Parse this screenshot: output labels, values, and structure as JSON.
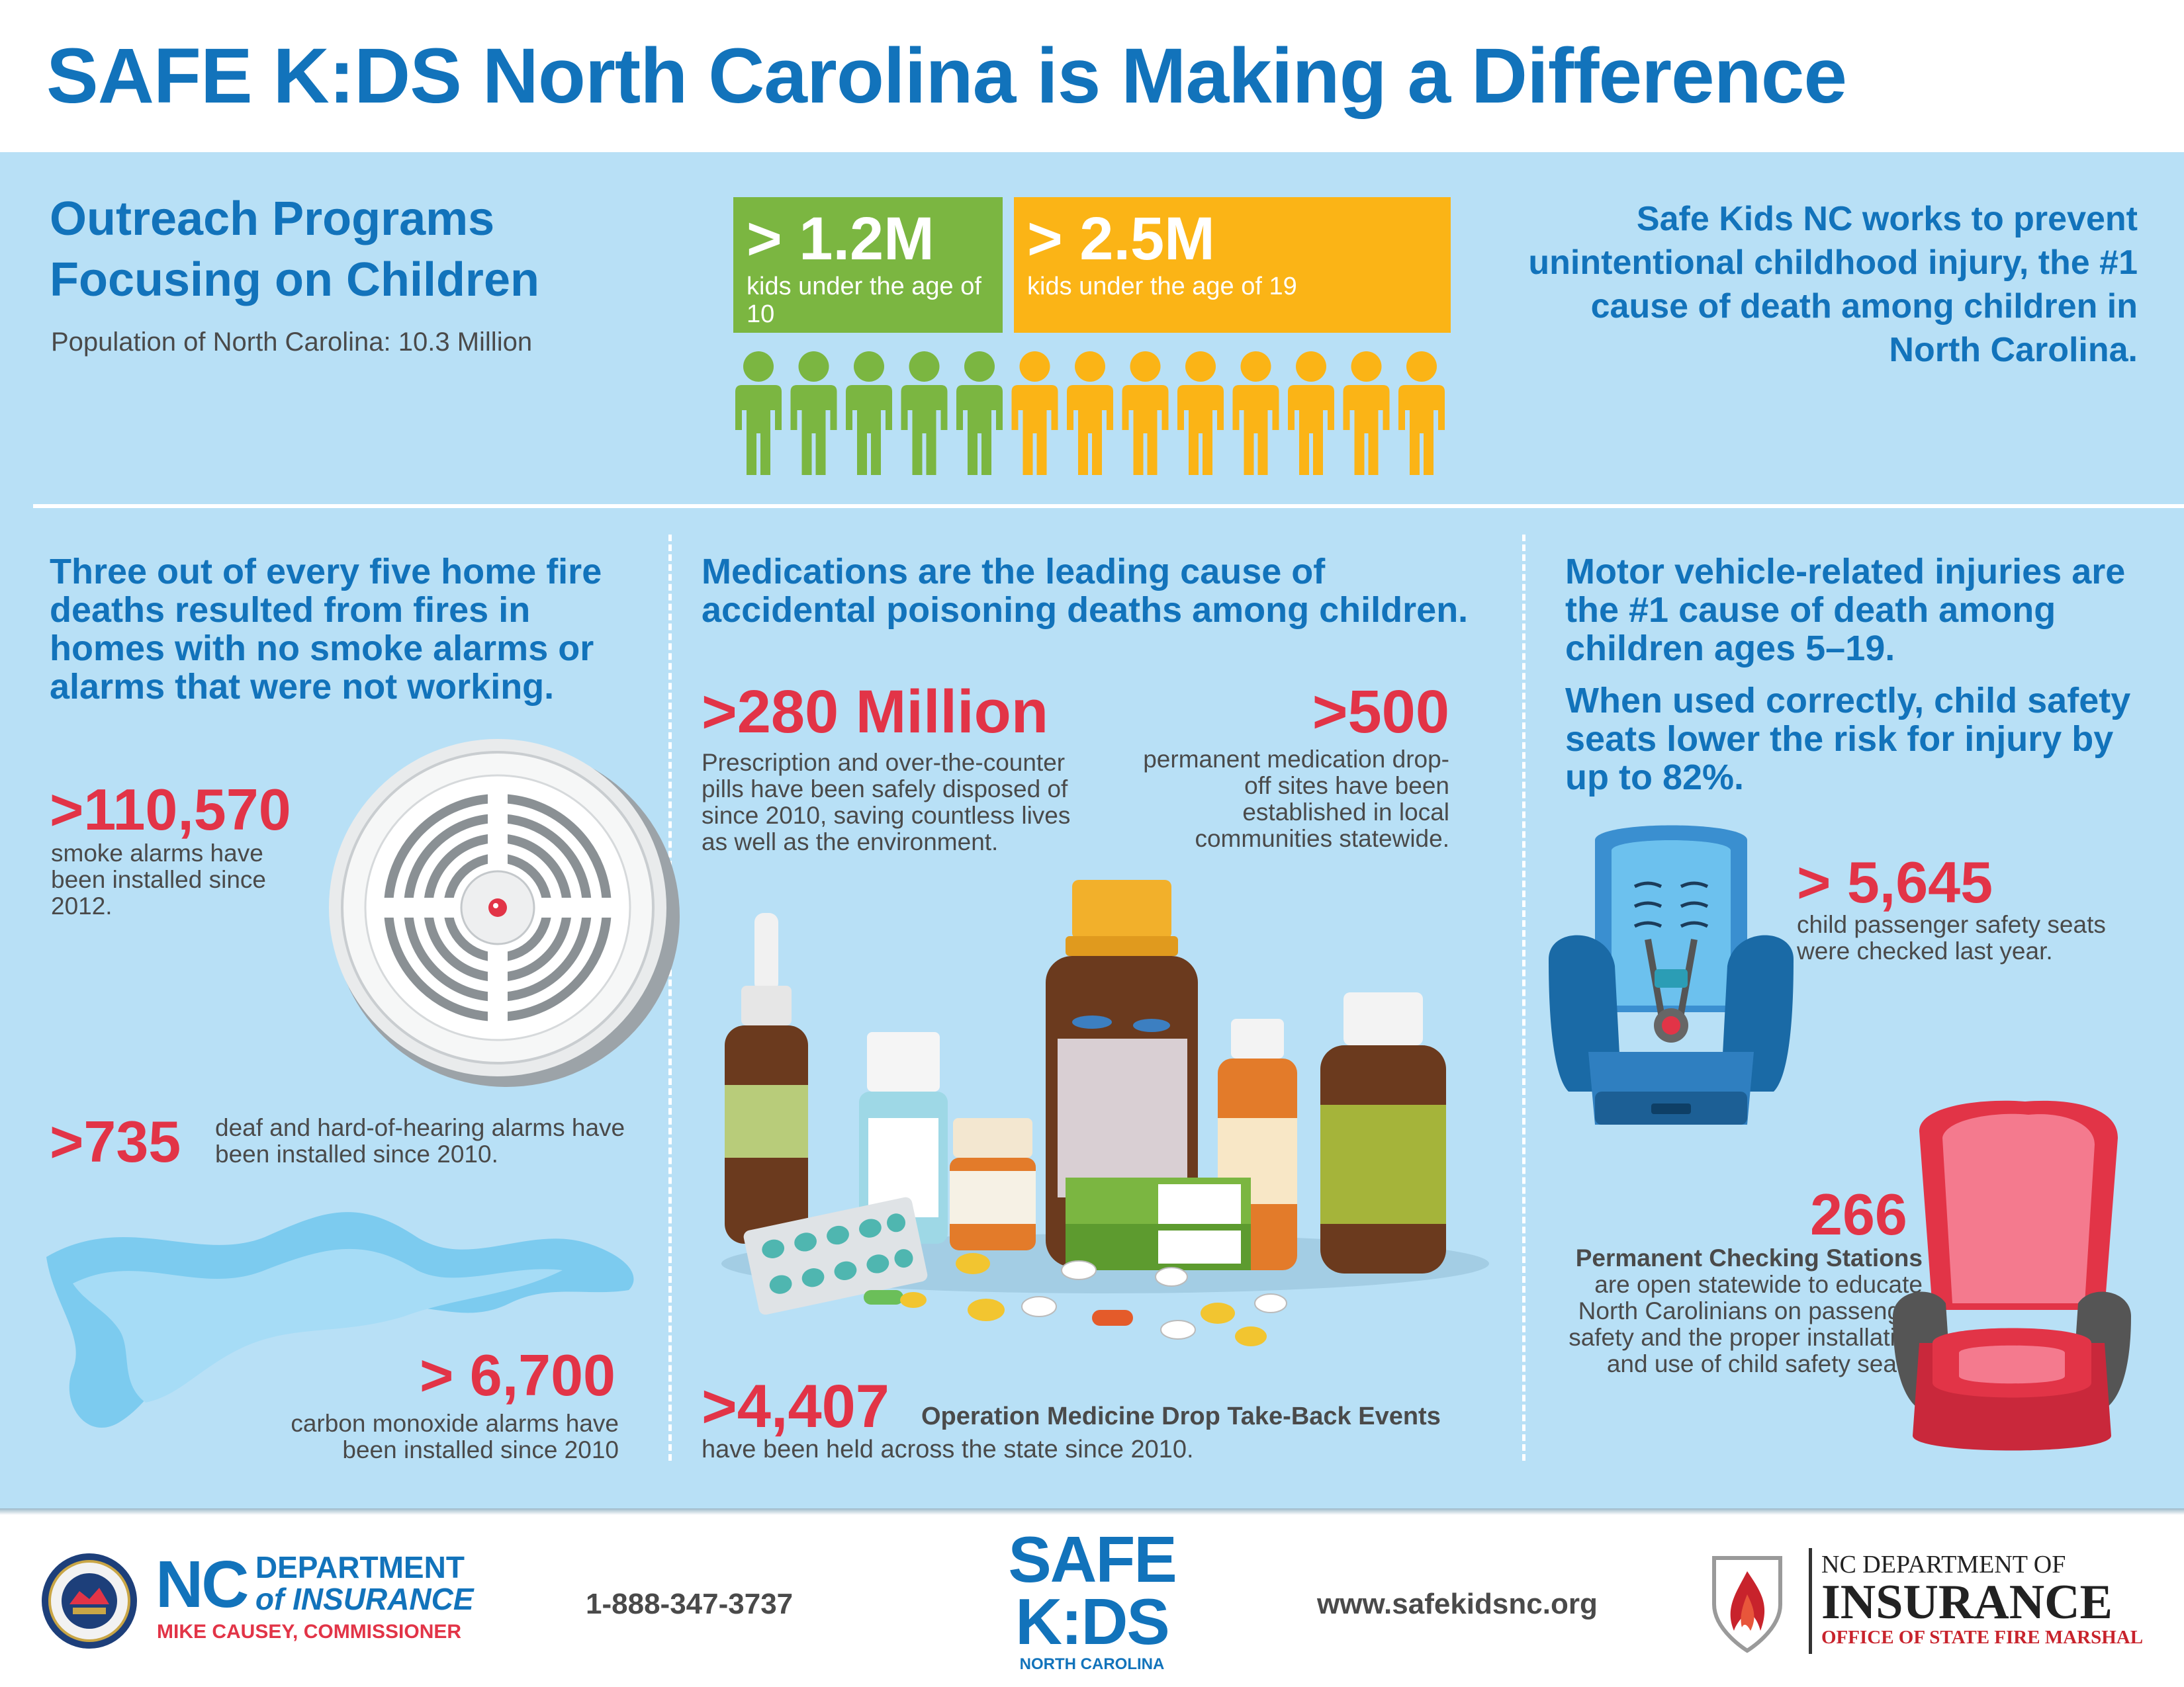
{
  "title": "SAFE K:DS North Carolina is Making a Difference",
  "outreach": {
    "title": "Outreach Programs Focusing on Children",
    "population": "Population of North Carolina: 10.3 Million",
    "stat_under_10": {
      "value": "> 1.2M",
      "label": "kids under the age of 10",
      "color": "#7bb641",
      "people_count": 5
    },
    "stat_under_19": {
      "value": "> 2.5M",
      "label": "kids under the age of 19",
      "color": "#fbb416",
      "people_count": 8
    },
    "mission": "Safe Kids NC works to prevent unintentional childhood injury, the #1 cause of death among children in North Carolina."
  },
  "fire": {
    "title": "Three out of every five home fire deaths resulted from fires in homes with no smoke alarms or alarms that were not working.",
    "smoke_alarms": {
      "value": ">110,570",
      "text": "smoke alarms have been installed since 2012."
    },
    "deaf_alarms": {
      "value": ">735",
      "text": "deaf and hard-of-hearing alarms have been installed since 2010."
    },
    "co_alarms": {
      "value": "> 6,700",
      "text": "carbon monoxide alarms have been installed since 2010"
    }
  },
  "medications": {
    "title": "Medications are the leading cause of accidental poisoning deaths among children.",
    "pills": {
      "value": ">280 Million",
      "text": "Prescription and over-the-counter pills have been safely disposed of since 2010, saving countless lives as well as the environment."
    },
    "dropoff": {
      "value": ">500",
      "text": "permanent medication drop-off sites have been established in local communities statewide."
    },
    "events": {
      "value": ">4,407",
      "bold_text": "Operation Medicine Drop Take-Back Events",
      "text": "have been held across the state since 2010."
    }
  },
  "vehicles": {
    "title": "Motor vehicle-related injuries are the #1 cause of death among children ages 5–19.",
    "subtitle": "When used correctly, child safety seats lower the risk for injury by up to 82%.",
    "seats_checked": {
      "value": "> 5,645",
      "text": "child passenger safety seats were checked last year."
    },
    "stations": {
      "value": "266",
      "bold_text": "Permanent Checking Stations",
      "text": "are open statewide to educate North Carolinians on passenger safety and the proper installation and use of child safety seats."
    }
  },
  "footer": {
    "nc_big": "NC",
    "dept_line1": "DEPARTMENT",
    "dept_line2": "of INSURANCE",
    "commissioner": "MIKE CAUSEY, COMMISSIONER",
    "phone": "1-888-347-3737",
    "safekids_line1": "SAFE",
    "safekids_line2": "K:DS",
    "safekids_line3": "NORTH CAROLINA",
    "website": "www.safekidsnc.org",
    "fm_line1": "NC DEPARTMENT OF",
    "fm_line2": "INSURANCE",
    "fm_line3": "OFFICE OF STATE FIRE MARSHAL"
  },
  "colors": {
    "brand_blue": "#1273bb",
    "accent_red": "#e23447",
    "panel_bg": "#b8e0f6"
  }
}
